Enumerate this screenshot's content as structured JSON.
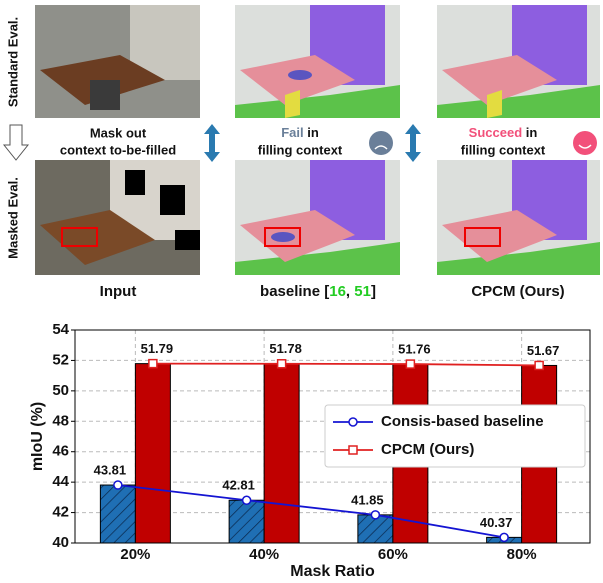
{
  "figure": {
    "rows": [
      "Standard Eval.",
      "Masked Eval."
    ],
    "mask_note": [
      "Mask out",
      "context to-be-filled"
    ],
    "fail": {
      "word": "Fail",
      "rest": " in",
      "line2": "filling context"
    },
    "succeed": {
      "word": "Succeed",
      "rest": " in",
      "line2": "filling context"
    },
    "columns": {
      "input": "Input",
      "baseline": [
        "baseline [",
        "16",
        ", ",
        "51",
        "]"
      ],
      "ours": "CPCM (Ours)"
    }
  },
  "chart_data": {
    "type": "bar",
    "xlabel": "Mask Ratio",
    "ylabel": "mIoU (%)",
    "categories": [
      "20%",
      "40%",
      "60%",
      "80%"
    ],
    "ylim": [
      40,
      54
    ],
    "yticks": [
      40,
      42,
      44,
      46,
      48,
      50,
      52,
      54
    ],
    "grid": true,
    "legend": "right",
    "series": [
      {
        "name": "Consis-based baseline",
        "color": "#1f6fb4",
        "line_color": "#1414d2",
        "hatch": true,
        "marker": "circle",
        "values": [
          43.81,
          42.81,
          41.85,
          40.37
        ]
      },
      {
        "name": "CPCM (Ours)",
        "color": "#c00000",
        "line_color": "#e02020",
        "hatch": false,
        "marker": "square",
        "values": [
          51.79,
          51.78,
          51.76,
          51.67
        ]
      }
    ]
  }
}
